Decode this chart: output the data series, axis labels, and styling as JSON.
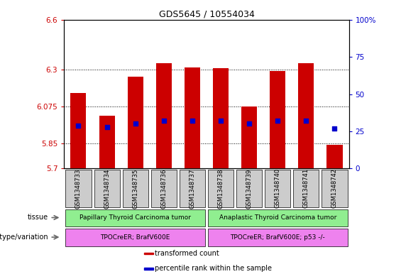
{
  "title": "GDS5645 / 10554034",
  "samples": [
    "GSM1348733",
    "GSM1348734",
    "GSM1348735",
    "GSM1348736",
    "GSM1348737",
    "GSM1348738",
    "GSM1348739",
    "GSM1348740",
    "GSM1348741",
    "GSM1348742"
  ],
  "bar_values": [
    6.155,
    6.02,
    6.255,
    6.335,
    6.31,
    6.305,
    6.075,
    6.29,
    6.335,
    5.845
  ],
  "bar_bottom": 5.7,
  "percentile_values": [
    29,
    28,
    30,
    32,
    32,
    32,
    30,
    32,
    32,
    27
  ],
  "ylim_left": [
    5.7,
    6.6
  ],
  "ylim_right": [
    0,
    100
  ],
  "yticks_left": [
    5.7,
    5.85,
    6.075,
    6.3,
    6.6
  ],
  "ytick_labels_left": [
    "5.7",
    "5.85",
    "6.075",
    "6.3",
    "6.6"
  ],
  "yticks_right": [
    0,
    25,
    50,
    75,
    100
  ],
  "ytick_labels_right": [
    "0",
    "25",
    "50",
    "75",
    "100%"
  ],
  "bar_color": "#cc0000",
  "percentile_color": "#0000cc",
  "tissue_groups": [
    {
      "label": "Papillary Thyroid Carcinoma tumor",
      "start": 0,
      "end": 5,
      "color": "#90ee90"
    },
    {
      "label": "Anaplastic Thyroid Carcinoma tumor",
      "start": 5,
      "end": 10,
      "color": "#90ee90"
    }
  ],
  "genotype_groups": [
    {
      "label": "TPOCreER; BrafV600E",
      "start": 0,
      "end": 5,
      "color": "#ee82ee"
    },
    {
      "label": "TPOCreER; BrafV600E; p53 -/-",
      "start": 5,
      "end": 10,
      "color": "#ee82ee"
    }
  ],
  "tissue_label": "tissue",
  "genotype_label": "genotype/variation",
  "legend_items": [
    {
      "color": "#cc0000",
      "label": "transformed count"
    },
    {
      "color": "#0000cc",
      "label": "percentile rank within the sample"
    }
  ],
  "background_color": "#ffffff",
  "tick_label_color_left": "#cc0000",
  "tick_label_color_right": "#0000cc",
  "sample_box_color": "#cccccc",
  "bar_width": 0.55
}
